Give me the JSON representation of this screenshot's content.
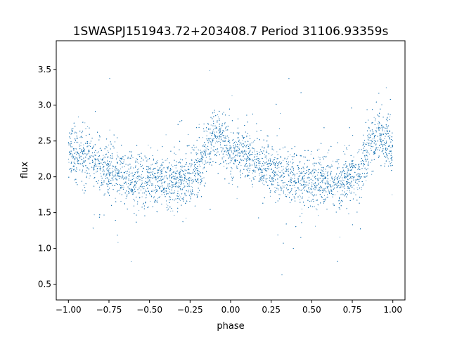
{
  "chart_data": {
    "type": "scatter",
    "title": "1SWASPJ151943.72+203408.7 Period 31106.93359s",
    "xlabel": "phase",
    "ylabel": "flux",
    "xlim": [
      -1.075,
      1.075
    ],
    "ylim": [
      0.28,
      3.9
    ],
    "xticks": [
      -1.0,
      -0.75,
      -0.5,
      -0.25,
      0.0,
      0.25,
      0.5,
      0.75,
      1.0
    ],
    "xtick_labels": [
      "−1.00",
      "−0.75",
      "−0.50",
      "−0.25",
      "0.00",
      "0.25",
      "0.50",
      "0.75",
      "1.00"
    ],
    "yticks": [
      0.5,
      1.0,
      1.5,
      2.0,
      2.5,
      3.0,
      3.5
    ],
    "ytick_labels": [
      "0.5",
      "1.0",
      "1.5",
      "2.0",
      "2.5",
      "3.0",
      "3.5"
    ],
    "grid": false,
    "legend": false,
    "marker_color": "#1f77b4",
    "marker_size": 0.5,
    "phase_range": [
      -1.0,
      1.0
    ],
    "trend_phase": [
      0.0,
      0.1,
      0.2,
      0.3,
      0.4,
      0.5,
      0.6,
      0.7,
      0.8,
      0.9,
      1.0
    ],
    "trend_flux": [
      2.35,
      2.27,
      2.15,
      2.04,
      1.98,
      1.95,
      1.93,
      1.92,
      2.1,
      2.6,
      2.4
    ],
    "scatter_std": 0.18,
    "approx_point_count": 16000
  }
}
